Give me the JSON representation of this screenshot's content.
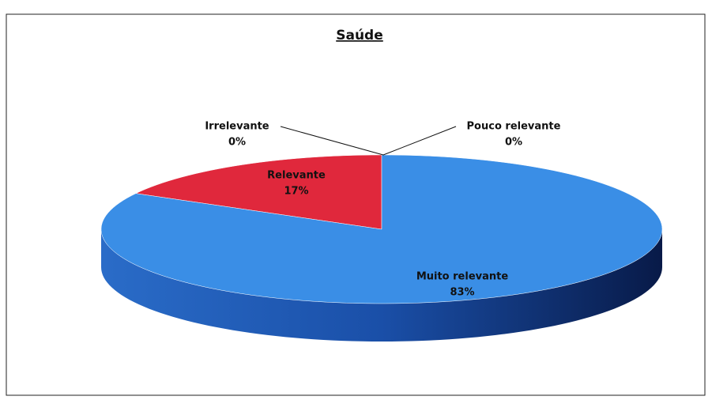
{
  "chart_data": {
    "type": "pie",
    "title": "Saúde",
    "categories": [
      "Irrelevante",
      "Pouco relevante",
      "Relevante",
      "Muito relevante"
    ],
    "values": [
      0,
      0,
      17,
      83
    ],
    "value_labels": [
      "0%",
      "0%",
      "17%",
      "83%"
    ],
    "colors": [
      "#9bbb59",
      "#8064a2",
      "#e0283c",
      "#3a8ee6"
    ]
  }
}
